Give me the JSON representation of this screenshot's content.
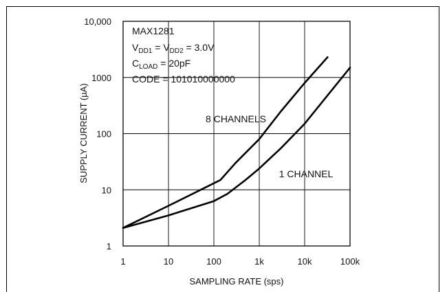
{
  "chart_data": {
    "type": "line",
    "xscale": "log",
    "yscale": "log",
    "xlim": [
      1,
      100000
    ],
    "ylim": [
      1,
      10000
    ],
    "xlabel": "SAMPLING RATE (sps)",
    "ylabel": "SUPPLY CURRENT (µA)",
    "x_ticks": [
      1,
      10,
      100,
      1000,
      10000,
      100000
    ],
    "x_tick_labels": [
      "1",
      "10",
      "100",
      "1k",
      "10k",
      "100k"
    ],
    "y_ticks": [
      1,
      10,
      100,
      1000,
      10000
    ],
    "y_tick_labels": [
      "1",
      "10",
      "100",
      "1000",
      "10,000"
    ],
    "grid": true,
    "annotation": {
      "device": "MAX1281",
      "vdd_line": {
        "v1": "V",
        "sub1": "DD1",
        "mid": " = V",
        "sub2": "DD2",
        "tail": " = 3.0V"
      },
      "cload_line": {
        "c": "C",
        "sub": "LOAD",
        "tail": " = 20pF"
      },
      "code_line": "CODE = 101010000000"
    },
    "series": [
      {
        "name": "8 CHANNELS",
        "x": [
          1,
          10,
          140,
          300,
          1000,
          3000,
          10000,
          32000
        ],
        "y": [
          2.1,
          5.2,
          15,
          30,
          80,
          250,
          800,
          2300
        ]
      },
      {
        "name": "1 CHANNEL",
        "x": [
          1,
          10,
          100,
          200,
          500,
          1000,
          3000,
          10000,
          30000,
          100000
        ],
        "y": [
          2.1,
          3.5,
          6.3,
          8.5,
          15,
          24,
          55,
          150,
          450,
          1500
        ]
      }
    ]
  }
}
